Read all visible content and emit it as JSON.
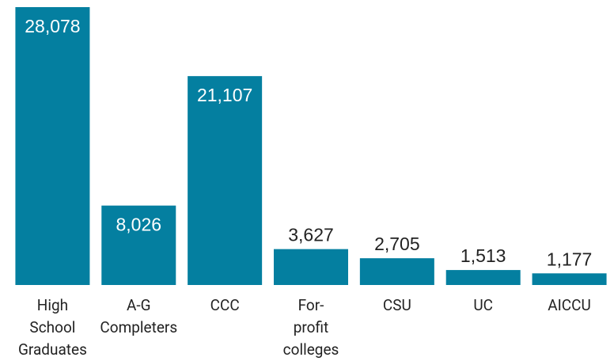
{
  "chart_data": {
    "type": "bar",
    "categories": [
      "High School Graduates",
      "A-G Completers",
      "CCC",
      "For-profit colleges",
      "CSU",
      "UC",
      "AICCU"
    ],
    "values": [
      28078,
      8026,
      21107,
      3627,
      2705,
      1513,
      1177
    ],
    "value_labels": [
      "28,078",
      "8,026",
      "21,107",
      "3,627",
      "2,705",
      "1,513",
      "1,177"
    ],
    "color": "#047fa0"
  }
}
